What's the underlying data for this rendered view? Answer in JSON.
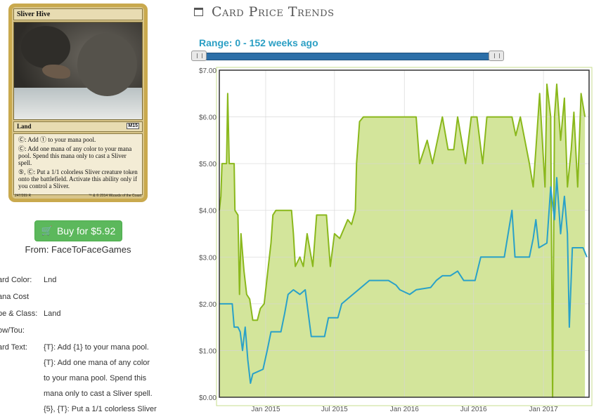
{
  "card": {
    "name": "Sliver Hive",
    "type": "Land",
    "set_symbol": "M15",
    "rules": [
      "Ⓒ: Add ① to your mana pool.",
      "Ⓒ: Add one mana of any color to your mana pool. Spend this mana only to cast a Sliver spell.",
      "⑤, Ⓒ: Put a 1/1 colorless Sliver creature token onto the battlefield. Activate this ability only if you control a Sliver."
    ],
    "collector": "247/269 R",
    "copyright": "™ & © 2014 Wizards of the Coast"
  },
  "buy": {
    "label": "Buy for $5.92",
    "from": "From: FaceToFaceGames",
    "color": "#5cb85c"
  },
  "details": [
    {
      "label": "ard Color:",
      "value": "Lnd"
    },
    {
      "label": "ana Cost",
      "value": ""
    },
    {
      "label": "pe & Class:",
      "value": "Land"
    },
    {
      "label": "ow/Tou:",
      "value": ""
    },
    {
      "label": "ard Text:",
      "value": "{T}: Add {1} to your mana pool."
    }
  ],
  "card_text_cont": [
    "{T}: Add one mana of any color",
    "to your mana pool. Spend this",
    "mana only to cast a Sliver spell.",
    "{5}, {T}: Put a 1/1 colorless Sliver"
  ],
  "header": {
    "title": "Card Price Trends",
    "icon": "calendar-icon"
  },
  "range": {
    "label": "Range: 0 - 152 weeks ago",
    "min": 0,
    "max": 152,
    "low": 0,
    "high": 152
  },
  "chart_data": {
    "type": "area",
    "ylim": [
      0,
      7
    ],
    "yticks": [
      "$0.00",
      "$1.00",
      "$2.00",
      "$3.00",
      "$4.00",
      "$5.00",
      "$6.00",
      "$7.00"
    ],
    "x_start": "2014-09-01",
    "x_end": "2017-05-01",
    "xticks": [
      {
        "date": "2015-01-01",
        "label": "Jan 2015"
      },
      {
        "date": "2015-07-01",
        "label": "Jul 2015"
      },
      {
        "date": "2016-01-01",
        "label": "Jan 2016"
      },
      {
        "date": "2016-07-01",
        "label": "Jul 2016"
      },
      {
        "date": "2017-01-01",
        "label": "Jan 2017"
      }
    ],
    "grid": true,
    "series": [
      {
        "color": "#8ab81c",
        "fill": "#d3e59b",
        "points": [
          [
            "2014-09-01",
            4.0
          ],
          [
            "2014-09-05",
            4.3
          ],
          [
            "2014-09-08",
            5.0
          ],
          [
            "2014-09-20",
            5.0
          ],
          [
            "2014-09-23",
            6.5
          ],
          [
            "2014-09-27",
            5.0
          ],
          [
            "2014-10-10",
            5.0
          ],
          [
            "2014-10-12",
            4.0
          ],
          [
            "2014-10-20",
            3.9
          ],
          [
            "2014-10-24",
            2.2
          ],
          [
            "2014-10-28",
            3.5
          ],
          [
            "2014-11-05",
            2.7
          ],
          [
            "2014-11-12",
            2.2
          ],
          [
            "2014-11-20",
            2.1
          ],
          [
            "2014-11-28",
            1.65
          ],
          [
            "2014-12-10",
            1.65
          ],
          [
            "2014-12-18",
            1.9
          ],
          [
            "2014-12-28",
            2.0
          ],
          [
            "2015-01-08",
            2.8
          ],
          [
            "2015-01-15",
            3.3
          ],
          [
            "2015-01-20",
            3.9
          ],
          [
            "2015-01-28",
            4.0
          ],
          [
            "2015-03-10",
            4.0
          ],
          [
            "2015-03-15",
            3.5
          ],
          [
            "2015-03-20",
            2.8
          ],
          [
            "2015-04-01",
            3.0
          ],
          [
            "2015-04-10",
            2.8
          ],
          [
            "2015-04-20",
            3.5
          ],
          [
            "2015-05-05",
            2.8
          ],
          [
            "2015-05-15",
            3.9
          ],
          [
            "2015-06-10",
            3.9
          ],
          [
            "2015-06-20",
            2.8
          ],
          [
            "2015-07-01",
            3.5
          ],
          [
            "2015-07-15",
            3.4
          ],
          [
            "2015-08-05",
            3.8
          ],
          [
            "2015-08-15",
            3.7
          ],
          [
            "2015-08-25",
            4.0
          ],
          [
            "2015-08-28",
            5.0
          ],
          [
            "2015-09-05",
            5.9
          ],
          [
            "2015-09-15",
            6.0
          ],
          [
            "2015-12-01",
            6.0
          ],
          [
            "2016-02-01",
            6.0
          ],
          [
            "2016-02-10",
            5.0
          ],
          [
            "2016-03-01",
            5.5
          ],
          [
            "2016-03-15",
            5.0
          ],
          [
            "2016-04-10",
            6.0
          ],
          [
            "2016-04-25",
            5.3
          ],
          [
            "2016-05-10",
            5.3
          ],
          [
            "2016-05-20",
            6.0
          ],
          [
            "2016-06-10",
            5.0
          ],
          [
            "2016-06-25",
            6.0
          ],
          [
            "2016-07-10",
            6.0
          ],
          [
            "2016-07-25",
            5.0
          ],
          [
            "2016-08-05",
            6.0
          ],
          [
            "2016-10-10",
            6.0
          ],
          [
            "2016-10-20",
            5.6
          ],
          [
            "2016-11-01",
            6.0
          ],
          [
            "2016-11-25",
            5.0
          ],
          [
            "2016-12-05",
            4.5
          ],
          [
            "2016-12-12",
            5.3
          ],
          [
            "2016-12-22",
            6.5
          ],
          [
            "2017-01-05",
            4.5
          ],
          [
            "2017-01-10",
            6.7
          ],
          [
            "2017-01-20",
            6.0
          ],
          [
            "2017-01-25",
            0.0
          ],
          [
            "2017-01-30",
            6.0
          ],
          [
            "2017-02-05",
            6.7
          ],
          [
            "2017-02-15",
            5.5
          ],
          [
            "2017-02-25",
            6.4
          ],
          [
            "2017-03-05",
            4.5
          ],
          [
            "2017-03-15",
            5.3
          ],
          [
            "2017-03-22",
            6.1
          ],
          [
            "2017-04-01",
            4.5
          ],
          [
            "2017-04-10",
            6.5
          ],
          [
            "2017-04-20",
            6.0
          ]
        ]
      },
      {
        "color": "#2aa1c8",
        "points": [
          [
            "2014-09-01",
            2.0
          ],
          [
            "2014-10-05",
            2.0
          ],
          [
            "2014-10-10",
            1.5
          ],
          [
            "2014-10-20",
            1.5
          ],
          [
            "2014-10-26",
            1.4
          ],
          [
            "2014-11-01",
            1.0
          ],
          [
            "2014-11-08",
            1.5
          ],
          [
            "2014-11-15",
            0.8
          ],
          [
            "2014-11-22",
            0.3
          ],
          [
            "2014-11-28",
            0.5
          ],
          [
            "2014-12-25",
            0.6
          ],
          [
            "2015-01-05",
            1.0
          ],
          [
            "2015-01-15",
            1.4
          ],
          [
            "2015-02-10",
            1.4
          ],
          [
            "2015-02-20",
            1.8
          ],
          [
            "2015-03-01",
            2.2
          ],
          [
            "2015-03-15",
            2.3
          ],
          [
            "2015-04-01",
            2.2
          ],
          [
            "2015-04-15",
            2.3
          ],
          [
            "2015-05-01",
            1.3
          ],
          [
            "2015-06-05",
            1.3
          ],
          [
            "2015-06-15",
            1.7
          ],
          [
            "2015-07-10",
            1.7
          ],
          [
            "2015-07-20",
            2.0
          ],
          [
            "2015-10-01",
            2.5
          ],
          [
            "2015-11-20",
            2.5
          ],
          [
            "2015-12-10",
            2.4
          ],
          [
            "2015-12-20",
            2.3
          ],
          [
            "2016-01-15",
            2.2
          ],
          [
            "2016-02-01",
            2.3
          ],
          [
            "2016-03-10",
            2.35
          ],
          [
            "2016-03-25",
            2.5
          ],
          [
            "2016-04-10",
            2.6
          ],
          [
            "2016-05-01",
            2.6
          ],
          [
            "2016-05-20",
            2.7
          ],
          [
            "2016-06-05",
            2.5
          ],
          [
            "2016-07-05",
            2.5
          ],
          [
            "2016-07-20",
            3.0
          ],
          [
            "2016-09-20",
            3.0
          ],
          [
            "2016-10-10",
            4.0
          ],
          [
            "2016-10-18",
            3.0
          ],
          [
            "2016-11-25",
            3.0
          ],
          [
            "2016-12-05",
            3.4
          ],
          [
            "2016-12-12",
            3.8
          ],
          [
            "2016-12-20",
            3.2
          ],
          [
            "2017-01-10",
            3.3
          ],
          [
            "2017-01-20",
            4.5
          ],
          [
            "2017-01-30",
            3.8
          ],
          [
            "2017-02-05",
            4.7
          ],
          [
            "2017-02-15",
            3.5
          ],
          [
            "2017-02-25",
            4.3
          ],
          [
            "2017-03-05",
            3.5
          ],
          [
            "2017-03-10",
            1.5
          ],
          [
            "2017-03-18",
            3.2
          ],
          [
            "2017-04-15",
            3.2
          ],
          [
            "2017-04-25",
            3.0
          ]
        ]
      }
    ]
  }
}
